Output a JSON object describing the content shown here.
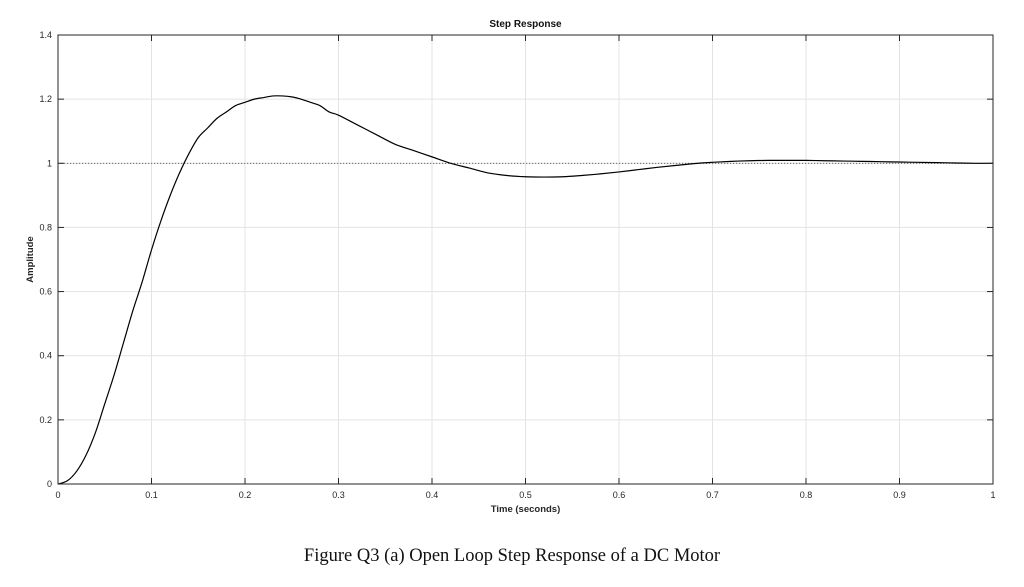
{
  "chart_data": {
    "type": "line",
    "title": "Step Response",
    "xlabel": "Time (seconds)",
    "ylabel": "Amplitude",
    "xlim": [
      0,
      1
    ],
    "ylim": [
      0,
      1.4
    ],
    "xticks": [
      "0",
      "0.1",
      "0.2",
      "0.3",
      "0.4",
      "0.5",
      "0.6",
      "0.7",
      "0.8",
      "0.9",
      "1"
    ],
    "yticks": [
      "0",
      "0.2",
      "0.4",
      "0.6",
      "0.8",
      "1",
      "1.2",
      "1.4"
    ],
    "grid": true,
    "reference_line": {
      "y": 1,
      "style": "dotted"
    },
    "series": [
      {
        "color": "#000000",
        "x": [
          0,
          0.01,
          0.02,
          0.03,
          0.04,
          0.05,
          0.06,
          0.07,
          0.08,
          0.09,
          0.1,
          0.11,
          0.12,
          0.13,
          0.14,
          0.15,
          0.16,
          0.17,
          0.18,
          0.19,
          0.2,
          0.21,
          0.22,
          0.23,
          0.24,
          0.25,
          0.26,
          0.27,
          0.28,
          0.29,
          0.3,
          0.32,
          0.34,
          0.36,
          0.38,
          0.4,
          0.42,
          0.44,
          0.46,
          0.48,
          0.5,
          0.52,
          0.54,
          0.56,
          0.58,
          0.6,
          0.62,
          0.64,
          0.66,
          0.68,
          0.7,
          0.72,
          0.74,
          0.76,
          0.78,
          0.8,
          0.82,
          0.84,
          0.86,
          0.88,
          0.9,
          0.92,
          0.94,
          0.96,
          0.98,
          1.0
        ],
        "y": [
          0,
          0.01,
          0.04,
          0.09,
          0.16,
          0.25,
          0.34,
          0.44,
          0.54,
          0.63,
          0.73,
          0.82,
          0.9,
          0.97,
          1.03,
          1.08,
          1.11,
          1.14,
          1.16,
          1.18,
          1.19,
          1.2,
          1.205,
          1.21,
          1.21,
          1.207,
          1.2,
          1.19,
          1.18,
          1.16,
          1.15,
          1.12,
          1.09,
          1.06,
          1.04,
          1.02,
          1.0,
          0.985,
          0.97,
          0.962,
          0.958,
          0.957,
          0.958,
          0.962,
          0.967,
          0.973,
          0.98,
          0.987,
          0.993,
          0.999,
          1.003,
          1.006,
          1.008,
          1.009,
          1.009,
          1.009,
          1.008,
          1.007,
          1.006,
          1.005,
          1.004,
          1.003,
          1.002,
          1.001,
          1.0,
          1.0
        ]
      }
    ]
  },
  "caption": "Figure Q3 (a) Open Loop Step Response of a DC Motor"
}
